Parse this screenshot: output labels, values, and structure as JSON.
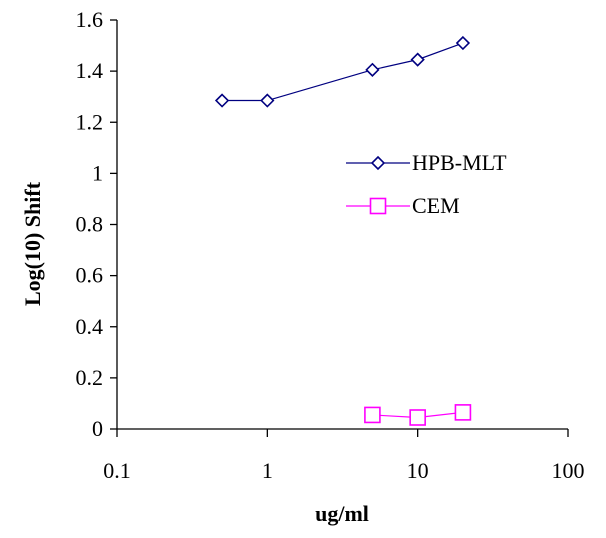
{
  "chart_data": {
    "type": "scatter",
    "title": "",
    "xlabel": "ug/ml",
    "ylabel": "Log(10) Shift",
    "x_scale": "log",
    "xlim": [
      0.1,
      100
    ],
    "ylim": [
      0,
      1.6
    ],
    "x_ticks": [
      0.1,
      1,
      10,
      100
    ],
    "x_tick_labels": [
      "0.1",
      "1",
      "10",
      "100"
    ],
    "y_ticks": [
      0,
      0.2,
      0.4,
      0.6,
      0.8,
      1,
      1.2,
      1.4,
      1.6
    ],
    "y_tick_labels": [
      "0",
      "0.2",
      "0.4",
      "0.6",
      "0.8",
      "1",
      "1.2",
      "1.4",
      "1.6"
    ],
    "grid": false,
    "legend_position": "right-middle",
    "series": [
      {
        "name": "HPB-MLT",
        "color": "#000080",
        "marker": "diamond",
        "x": [
          0.5,
          1,
          5,
          10,
          20
        ],
        "y": [
          1.285,
          1.285,
          1.405,
          1.445,
          1.51
        ]
      },
      {
        "name": "CEM",
        "color": "#ff00ff",
        "marker": "square",
        "x": [
          5,
          10,
          20
        ],
        "y": [
          0.055,
          0.045,
          0.065
        ]
      }
    ]
  }
}
